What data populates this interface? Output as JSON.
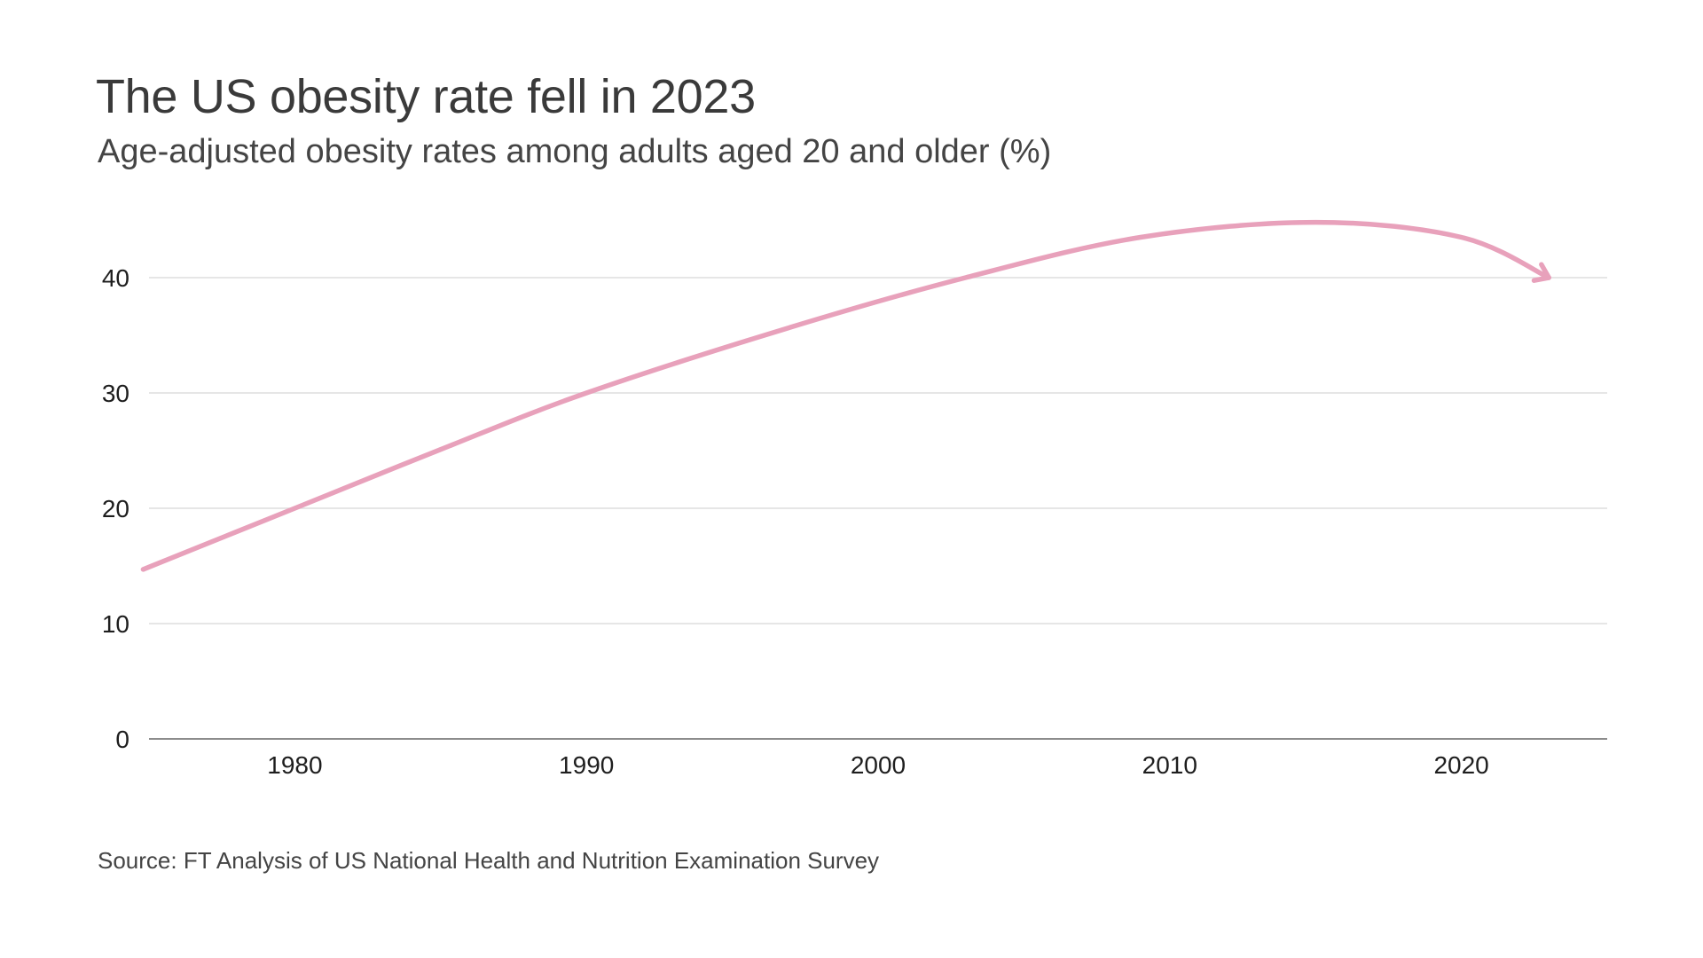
{
  "header": {
    "title": "The US obesity rate fell in 2023",
    "subtitle": "Age-adjusted obesity rates among adults aged 20 and older (%)"
  },
  "footer": {
    "source": "Source: FT Analysis of US National Health and Nutrition Examination Survey"
  },
  "colors": {
    "line": "#e8a1bb",
    "grid": "#dddddd",
    "baseline": "#666666",
    "text": "#1e1e1e"
  },
  "chart_data": {
    "type": "line",
    "title": "The US obesity rate fell in 2023",
    "subtitle": "Age-adjusted obesity rates among adults aged 20 and older (%)",
    "xlabel": "",
    "ylabel": "",
    "xlim": [
      1975,
      2025
    ],
    "ylim": [
      0,
      45
    ],
    "grid": true,
    "legend": "none",
    "x_ticks": [
      1980,
      1990,
      2000,
      2010,
      2020
    ],
    "x_tick_labels": [
      "1980",
      "1990",
      "2000",
      "2010",
      "2020"
    ],
    "y_ticks": [
      0,
      10,
      20,
      30,
      40
    ],
    "y_tick_labels": [
      "0",
      "10",
      "20",
      "30",
      "40"
    ],
    "series": [
      {
        "name": "Obesity rate (%)",
        "style": "smooth curve ending in arrowhead",
        "x": [
          1974.8,
          1980,
          1985,
          1990,
          1997,
          2003,
          2009,
          2015,
          2020,
          2023
        ],
        "values": [
          14.7,
          20.0,
          25.1,
          30.0,
          35.7,
          40.0,
          43.5,
          44.8,
          43.5,
          40.0
        ]
      }
    ],
    "source": "Source: FT Analysis of US National Health and Nutrition Examination Survey"
  }
}
